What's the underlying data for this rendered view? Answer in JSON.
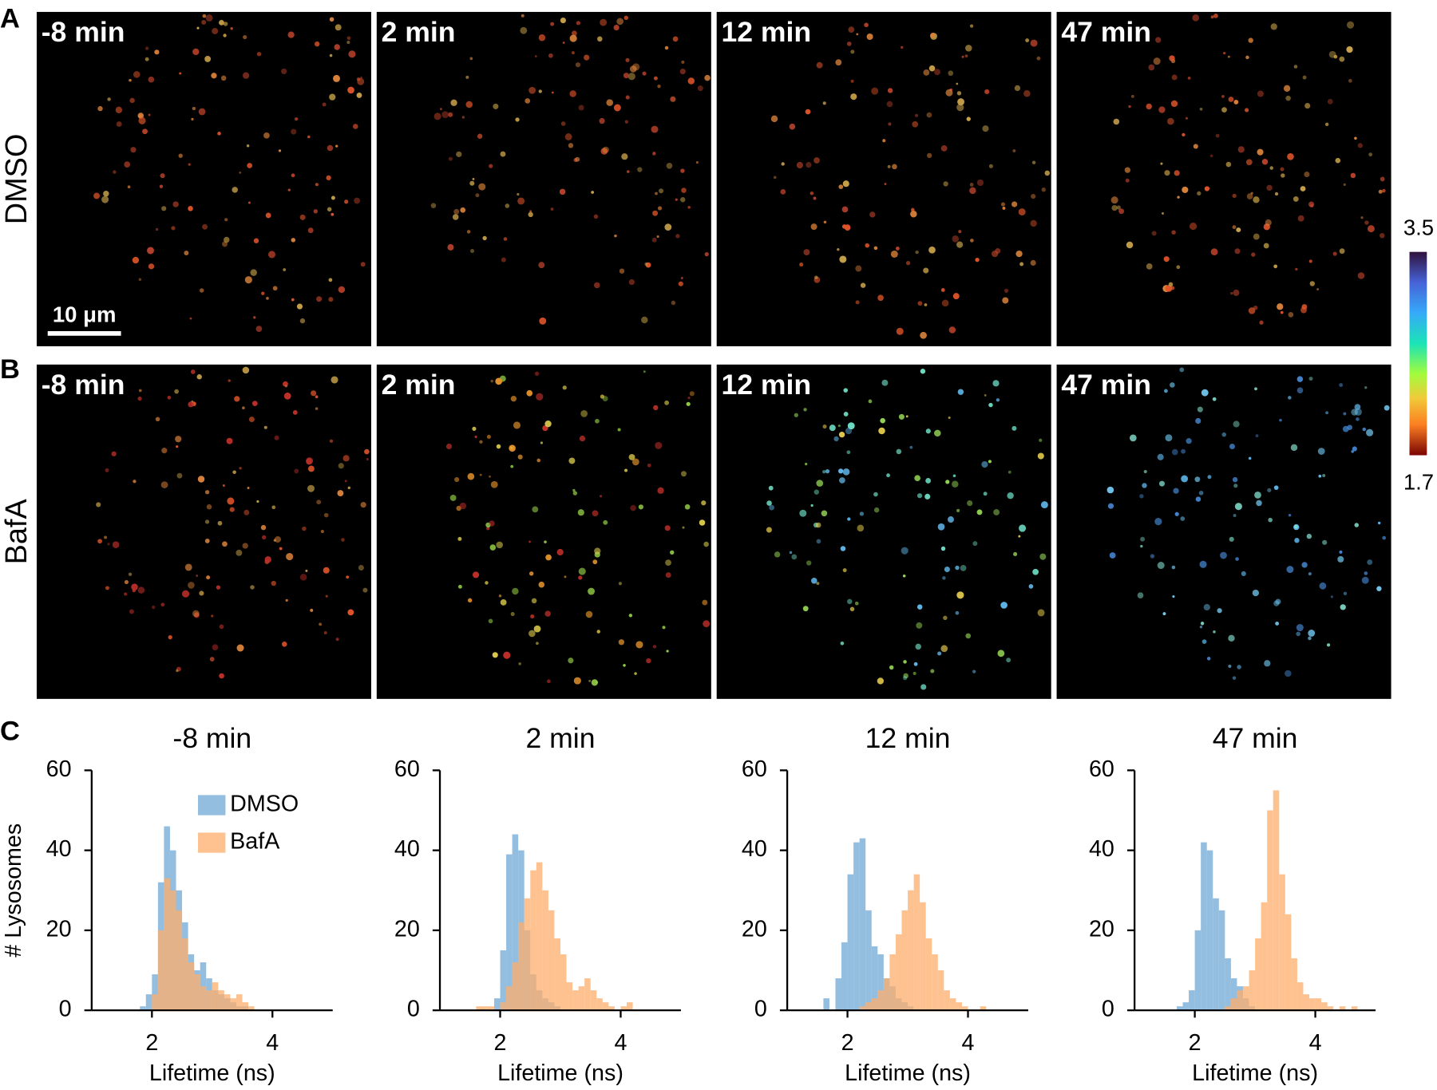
{
  "panels": {
    "labels": [
      "A",
      "B",
      "C"
    ],
    "rows": [
      {
        "name": "DMSO",
        "times": [
          "-8 min",
          "2 min",
          "12 min",
          "47 min"
        ]
      },
      {
        "name": "BafA",
        "times": [
          "-8 min",
          "2 min",
          "12 min",
          "47 min"
        ]
      }
    ],
    "scale_bar": "10 μm",
    "colorbar": {
      "max": 3.5,
      "min": 1.7
    }
  },
  "chart_data": [
    {
      "type": "histogram",
      "title": "-8 min",
      "xlabel": "Lifetime (ns)",
      "ylabel": "# Lysosomes",
      "legend": "upper right",
      "bins": [
        1.5,
        1.6,
        1.7,
        1.8,
        1.9,
        2.0,
        2.1,
        2.2,
        2.3,
        2.4,
        2.5,
        2.6,
        2.7,
        2.8,
        2.9,
        3.0,
        3.1,
        3.2,
        3.3,
        3.4,
        3.5,
        3.6,
        3.7,
        3.8,
        3.9,
        4.0,
        4.1,
        4.2,
        4.3,
        4.4,
        4.5,
        4.6,
        4.7
      ],
      "series": [
        {
          "name": "DMSO",
          "color": "#6fa8d6",
          "values": [
            0,
            0,
            0,
            1,
            4,
            9,
            32,
            46,
            40,
            30,
            22,
            14,
            10,
            12,
            8,
            5,
            4,
            3,
            2,
            1,
            1,
            0,
            0,
            0,
            0,
            0,
            0,
            0,
            0,
            0,
            0,
            0
          ]
        },
        {
          "name": "BafA",
          "color": "#fdae6b",
          "values": [
            0,
            0,
            0,
            0,
            0,
            4,
            20,
            33,
            30,
            25,
            18,
            12,
            9,
            6,
            5,
            7,
            5,
            4,
            3,
            4,
            2,
            1,
            0,
            0,
            0,
            0,
            0,
            0,
            0,
            0,
            0,
            0
          ]
        }
      ],
      "xlim": [
        1,
        5
      ],
      "xticks": [
        2,
        4
      ],
      "ylim": [
        0,
        60
      ],
      "yticks": [
        0,
        20,
        40,
        60
      ]
    },
    {
      "type": "histogram",
      "title": "2 min",
      "xlabel": "Lifetime (ns)",
      "bins": [
        1.5,
        1.6,
        1.7,
        1.8,
        1.9,
        2.0,
        2.1,
        2.2,
        2.3,
        2.4,
        2.5,
        2.6,
        2.7,
        2.8,
        2.9,
        3.0,
        3.1,
        3.2,
        3.3,
        3.4,
        3.5,
        3.6,
        3.7,
        3.8,
        3.9,
        4.0,
        4.1,
        4.2,
        4.3,
        4.4,
        4.5,
        4.6,
        4.7
      ],
      "series": [
        {
          "name": "DMSO",
          "color": "#6fa8d6",
          "values": [
            0,
            0,
            0,
            0,
            3,
            15,
            39,
            44,
            40,
            20,
            9,
            5,
            3,
            2,
            1,
            0,
            0,
            0,
            0,
            0,
            0,
            0,
            0,
            0,
            0,
            0,
            0,
            0,
            0,
            0,
            0,
            0
          ]
        },
        {
          "name": "BafA",
          "color": "#fdae6b",
          "values": [
            0,
            1,
            1,
            1,
            0,
            2,
            6,
            12,
            22,
            28,
            35,
            37,
            30,
            25,
            18,
            14,
            7,
            5,
            6,
            8,
            5,
            3,
            2,
            1,
            0,
            1,
            2,
            0,
            0,
            0,
            0,
            0
          ]
        }
      ],
      "xlim": [
        1,
        5
      ],
      "xticks": [
        2,
        4
      ],
      "ylim": [
        0,
        60
      ],
      "yticks": [
        0,
        20,
        40,
        60
      ]
    },
    {
      "type": "histogram",
      "title": "12 min",
      "xlabel": "Lifetime (ns)",
      "bins": [
        1.5,
        1.6,
        1.7,
        1.8,
        1.9,
        2.0,
        2.1,
        2.2,
        2.3,
        2.4,
        2.5,
        2.6,
        2.7,
        2.8,
        2.9,
        3.0,
        3.1,
        3.2,
        3.3,
        3.4,
        3.5,
        3.6,
        3.7,
        3.8,
        3.9,
        4.0,
        4.1,
        4.2,
        4.3,
        4.4,
        4.5,
        4.6,
        4.7
      ],
      "series": [
        {
          "name": "DMSO",
          "color": "#6fa8d6",
          "values": [
            0,
            3,
            0,
            8,
            17,
            34,
            42,
            43,
            25,
            16,
            14,
            8,
            6,
            3,
            2,
            1,
            0,
            0,
            0,
            0,
            0,
            0,
            0,
            0,
            0,
            0,
            0,
            0,
            0,
            0,
            0,
            0
          ]
        },
        {
          "name": "BafA",
          "color": "#fdae6b",
          "values": [
            0,
            0,
            0,
            0,
            0,
            0,
            0,
            1,
            2,
            3,
            5,
            8,
            14,
            19,
            25,
            30,
            34,
            27,
            18,
            14,
            10,
            5,
            3,
            2,
            1,
            0,
            0,
            1,
            0,
            0,
            0,
            0
          ]
        }
      ],
      "xlim": [
        1,
        5
      ],
      "xticks": [
        2,
        4
      ],
      "ylim": [
        0,
        60
      ],
      "yticks": [
        0,
        20,
        40,
        60
      ]
    },
    {
      "type": "histogram",
      "title": "47 min",
      "xlabel": "Lifetime (ns)",
      "bins": [
        1.5,
        1.6,
        1.7,
        1.8,
        1.9,
        2.0,
        2.1,
        2.2,
        2.3,
        2.4,
        2.5,
        2.6,
        2.7,
        2.8,
        2.9,
        3.0,
        3.1,
        3.2,
        3.3,
        3.4,
        3.5,
        3.6,
        3.7,
        3.8,
        3.9,
        4.0,
        4.1,
        4.2,
        4.3,
        4.4,
        4.5,
        4.6,
        4.7
      ],
      "series": [
        {
          "name": "DMSO",
          "color": "#6fa8d6",
          "values": [
            0,
            0,
            1,
            2,
            5,
            20,
            42,
            40,
            28,
            25,
            13,
            8,
            6,
            3,
            1,
            0,
            0,
            0,
            0,
            0,
            0,
            0,
            0,
            0,
            0,
            0,
            0,
            0,
            0,
            0,
            0,
            0
          ]
        },
        {
          "name": "BafA",
          "color": "#fdae6b",
          "values": [
            0,
            0,
            0,
            0,
            0,
            0,
            0,
            0,
            0,
            0,
            1,
            3,
            5,
            6,
            10,
            18,
            27,
            50,
            55,
            34,
            24,
            13,
            7,
            4,
            3,
            3,
            2,
            1,
            0,
            1,
            0,
            1
          ]
        }
      ],
      "xlim": [
        1,
        5
      ],
      "xticks": [
        2,
        4
      ],
      "ylim": [
        0,
        60
      ],
      "yticks": [
        0,
        20,
        40,
        60
      ]
    }
  ]
}
